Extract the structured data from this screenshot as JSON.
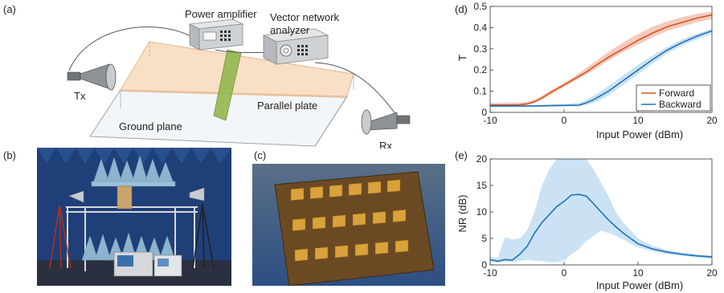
{
  "panels": {
    "a": {
      "label": "(a)",
      "power_amplifier": "Power amplifier",
      "vna_line1": "Vector network",
      "vna_line2": "analyzer",
      "tx": "Tx",
      "rx": "Rx",
      "parallel_plate": "Parallel plate",
      "ground_plane": "Ground plane"
    },
    "b": {
      "label": "(b)"
    },
    "c": {
      "label": "(c)"
    },
    "d": {
      "label": "(d)"
    },
    "e": {
      "label": "(e)"
    }
  },
  "colors": {
    "forward": "#d9531e",
    "backward": "#1f72b8",
    "forward_band": "#f2b8a8",
    "backward_band": "#b9d8f0",
    "plate": "#f9dfc5",
    "absorber": "#8cb4cf",
    "anechoic_wall": "#1f3f78",
    "board": "#6b4a23",
    "patch": "#d9a23b"
  },
  "chart_data": [
    {
      "type": "line",
      "xlabel": "Input Power (dBm)",
      "ylabel": "T",
      "xlim": [
        -10,
        20
      ],
      "ylim": [
        0,
        0.5
      ],
      "xticks": [
        "-10",
        "0",
        "10",
        "20"
      ],
      "yticks": [
        "0",
        "0.1",
        "0.2",
        "0.3",
        "0.4",
        "0.5"
      ],
      "legend_position": "bottom-right",
      "series": [
        {
          "name": "Forward",
          "x": [
            -10,
            -8,
            -6,
            -5,
            -4,
            -3,
            -2,
            -1,
            0,
            1,
            2,
            3,
            4,
            6,
            8,
            10,
            12,
            14,
            16,
            18,
            20
          ],
          "values": [
            0.035,
            0.035,
            0.036,
            0.04,
            0.05,
            0.068,
            0.09,
            0.11,
            0.13,
            0.15,
            0.17,
            0.19,
            0.215,
            0.26,
            0.3,
            0.34,
            0.375,
            0.405,
            0.425,
            0.445,
            0.46
          ],
          "band_lower": [
            0.03,
            0.03,
            0.031,
            0.035,
            0.045,
            0.06,
            0.08,
            0.1,
            0.12,
            0.14,
            0.16,
            0.18,
            0.2,
            0.245,
            0.285,
            0.32,
            0.355,
            0.385,
            0.405,
            0.425,
            0.44
          ],
          "band_upper": [
            0.045,
            0.045,
            0.047,
            0.05,
            0.06,
            0.078,
            0.1,
            0.12,
            0.14,
            0.16,
            0.185,
            0.21,
            0.235,
            0.285,
            0.33,
            0.37,
            0.405,
            0.43,
            0.45,
            0.465,
            0.475
          ]
        },
        {
          "name": "Backward",
          "x": [
            -10,
            -8,
            -6,
            -4,
            -2,
            0,
            2,
            3,
            4,
            5,
            6,
            8,
            10,
            12,
            14,
            16,
            18,
            20
          ],
          "values": [
            0.03,
            0.03,
            0.03,
            0.03,
            0.032,
            0.033,
            0.034,
            0.045,
            0.06,
            0.08,
            0.1,
            0.15,
            0.2,
            0.25,
            0.295,
            0.33,
            0.36,
            0.385
          ],
          "band_lower": [
            0.025,
            0.025,
            0.025,
            0.025,
            0.027,
            0.028,
            0.029,
            0.035,
            0.045,
            0.06,
            0.08,
            0.13,
            0.18,
            0.23,
            0.28,
            0.315,
            0.345,
            0.37
          ],
          "band_upper": [
            0.035,
            0.035,
            0.035,
            0.035,
            0.037,
            0.04,
            0.045,
            0.06,
            0.08,
            0.1,
            0.125,
            0.175,
            0.225,
            0.27,
            0.31,
            0.345,
            0.372,
            0.395
          ]
        }
      ]
    },
    {
      "type": "line",
      "xlabel": "Input Power (dBm)",
      "ylabel": "NR (dB)",
      "xlim": [
        -10,
        20
      ],
      "ylim": [
        0,
        20
      ],
      "xticks": [
        "-10",
        "0",
        "10",
        "20"
      ],
      "yticks": [
        "0",
        "5",
        "10",
        "15",
        "20"
      ],
      "series": [
        {
          "name": "",
          "x": [
            -10,
            -9,
            -8,
            -7,
            -6,
            -5,
            -4,
            -3,
            -2,
            -1,
            0,
            1,
            2,
            3,
            4,
            5,
            6,
            7,
            8,
            9,
            10,
            12,
            14,
            16,
            18,
            20
          ],
          "values": [
            1.0,
            0.7,
            1.0,
            0.9,
            2.0,
            3.5,
            6.0,
            8.0,
            9.5,
            11.0,
            12.0,
            13.2,
            13.3,
            13.0,
            11.5,
            10.0,
            8.5,
            7.2,
            6.0,
            5.0,
            4.0,
            3.0,
            2.4,
            2.0,
            1.7,
            1.5
          ],
          "band_lower": [
            0.6,
            0.4,
            0.6,
            0.5,
            0.8,
            0.9,
            0.8,
            0.7,
            0.5,
            0.5,
            0.8,
            2.0,
            3.0,
            4.5,
            5.5,
            6.5,
            6.0,
            5.5,
            4.8,
            4.0,
            3.3,
            2.5,
            2.0,
            1.7,
            1.4,
            1.2
          ],
          "band_upper": [
            1.5,
            1.3,
            5.2,
            4.8,
            5.0,
            6.5,
            10.0,
            15.0,
            18.0,
            20.0,
            20.0,
            20.0,
            20.0,
            20.0,
            18.0,
            15.5,
            13.0,
            10.0,
            8.0,
            6.5,
            5.0,
            3.6,
            2.8,
            2.3,
            2.0,
            1.8
          ]
        }
      ]
    }
  ]
}
